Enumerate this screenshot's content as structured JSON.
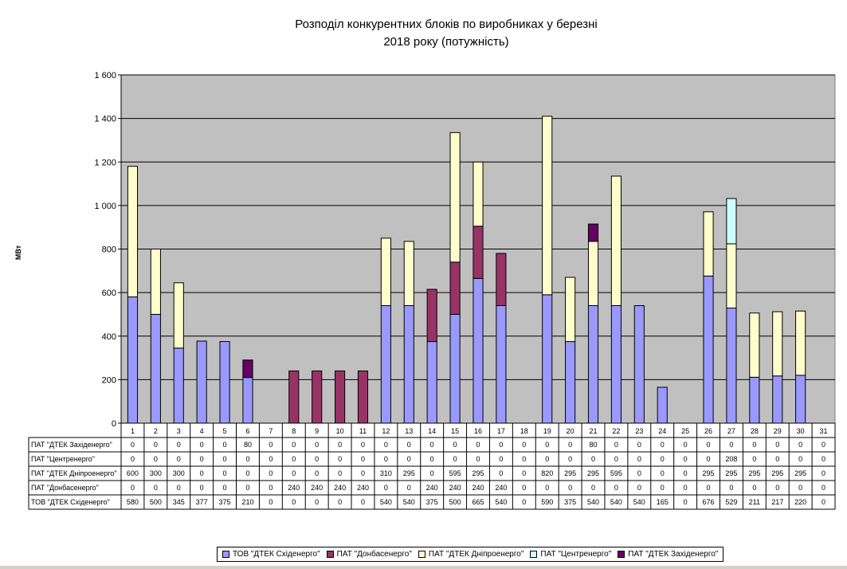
{
  "chart_data": {
    "type": "bar",
    "stacked": true,
    "title_line1": "Розподіл конкурентних блоків по виробниках у березні",
    "title_line2": "2018 року (потужність)",
    "ylabel": "МВт",
    "ylim": [
      0,
      1600
    ],
    "yticks": [
      0,
      200,
      400,
      600,
      800,
      1000,
      1200,
      1400,
      1600
    ],
    "ytick_labels": [
      "0",
      "200",
      "400",
      "600",
      "800",
      "1 000",
      "1 200",
      "1 400",
      "1 600"
    ],
    "grid": true,
    "legend_position": "bottom",
    "categories": [
      "1",
      "2",
      "3",
      "4",
      "5",
      "6",
      "7",
      "8",
      "9",
      "10",
      "11",
      "12",
      "13",
      "14",
      "15",
      "16",
      "17",
      "18",
      "19",
      "20",
      "21",
      "22",
      "23",
      "24",
      "25",
      "26",
      "27",
      "28",
      "29",
      "30",
      "31"
    ],
    "series": [
      {
        "name": "ТОВ \"ДТЕК Східенерго\"",
        "color": "#9999ff",
        "values": [
          580,
          500,
          345,
          377,
          375,
          210,
          0,
          0,
          0,
          0,
          0,
          540,
          540,
          375,
          500,
          665,
          540,
          0,
          590,
          375,
          540,
          540,
          540,
          165,
          0,
          676,
          529,
          211,
          217,
          220,
          0
        ]
      },
      {
        "name": "ПАТ \"Донбасенерго\"",
        "color": "#993366",
        "values": [
          0,
          0,
          0,
          0,
          0,
          0,
          0,
          240,
          240,
          240,
          240,
          0,
          0,
          240,
          240,
          240,
          240,
          0,
          0,
          0,
          0,
          0,
          0,
          0,
          0,
          0,
          0,
          0,
          0,
          0,
          0
        ]
      },
      {
        "name": "ПАТ \"ДТЕК Дніпроенерго\"",
        "color": "#ffffcc",
        "values": [
          600,
          300,
          300,
          0,
          0,
          0,
          0,
          0,
          0,
          0,
          0,
          310,
          295,
          0,
          595,
          295,
          0,
          0,
          820,
          295,
          295,
          595,
          0,
          0,
          0,
          295,
          295,
          295,
          295,
          295,
          0
        ]
      },
      {
        "name": "ПАТ \"Центренерго\"",
        "color": "#ccffff",
        "values": [
          0,
          0,
          0,
          0,
          0,
          0,
          0,
          0,
          0,
          0,
          0,
          0,
          0,
          0,
          0,
          0,
          0,
          0,
          0,
          0,
          0,
          0,
          0,
          0,
          0,
          0,
          208,
          0,
          0,
          0,
          0
        ]
      },
      {
        "name": "ПАТ \"ДТЕК Західенерго\"",
        "color": "#660066",
        "values": [
          0,
          0,
          0,
          0,
          0,
          80,
          0,
          0,
          0,
          0,
          0,
          0,
          0,
          0,
          0,
          0,
          0,
          0,
          0,
          0,
          80,
          0,
          0,
          0,
          0,
          0,
          0,
          0,
          0,
          0,
          0
        ]
      }
    ],
    "table_row_order": [
      4,
      3,
      2,
      1,
      0
    ]
  }
}
